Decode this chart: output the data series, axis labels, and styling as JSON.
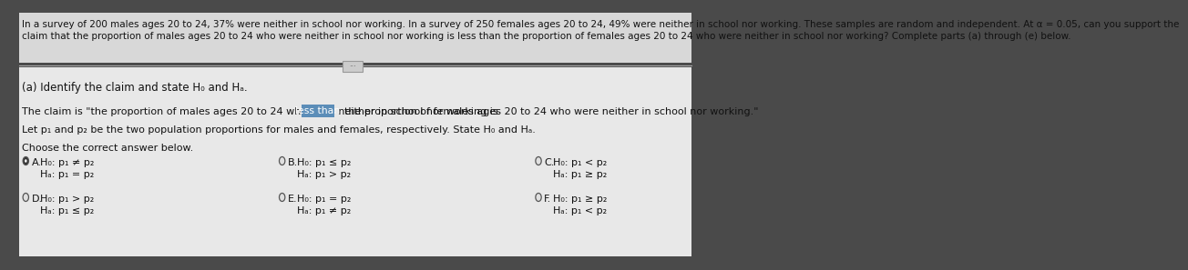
{
  "header_text_line1": "In a survey of 200 males ages 20 to 24, 37% were neither in school nor working. In a survey of 250 females ages 20 to 24, 49% were neither in school nor working. These samples are random and independent. At α = 0.05, can you support the",
  "header_text_line2": "claim that the proportion of males ages 20 to 24 who were neither in school nor working is less than the proportion of females ages 20 to 24 who were neither in school nor working? Complete parts (a) through (e) below.",
  "part_a_label": "(a) Identify the claim and state H₀ and Hₐ.",
  "claim_prefix": "The claim is \"the proportion of males ages 20 to 24 who were neither in school nor working is",
  "claim_highlight": "less than",
  "claim_suffix": "  the proportion of females ages 20 to 24 who were neither in school nor working.\"",
  "let_line": "Let p₁ and p₂ be the two population proportions for males and females, respectively. State H₀ and Hₐ.",
  "choose_line": "Choose the correct answer below.",
  "options": [
    {
      "id": "A",
      "h0": "H₀: p₁ ≠ p₂",
      "ha": "Hₐ: p₁ = p₂",
      "selected": true,
      "row": 0,
      "col": 0
    },
    {
      "id": "B",
      "h0": "H₀: p₁ ≤ p₂",
      "ha": "Hₐ: p₁ > p₂",
      "selected": false,
      "row": 0,
      "col": 1
    },
    {
      "id": "C",
      "h0": "H₀: p₁ < p₂",
      "ha": "Hₐ: p₁ ≥ p₂",
      "selected": false,
      "row": 0,
      "col": 2
    },
    {
      "id": "D",
      "h0": "H₀: p₁ > p₂",
      "ha": "Hₐ: p₁ ≤ p₂",
      "selected": false,
      "row": 1,
      "col": 0
    },
    {
      "id": "E",
      "h0": "H₀: p₁ = p₂",
      "ha": "Hₐ: p₁ ≠ p₂",
      "selected": false,
      "row": 1,
      "col": 1
    },
    {
      "id": "F",
      "h0": "H₀: p₁ ≥ p₂",
      "ha": "Hₐ: p₁ < p₂",
      "selected": false,
      "row": 1,
      "col": 2
    }
  ],
  "outer_bg": "#4a4a4a",
  "header_bg": "#d8d8d8",
  "content_bg": "#e8e8e8",
  "separator_color": "#aaaaaa",
  "text_color": "#1a1a1a",
  "highlight_bg": "#5b8db8",
  "highlight_text": "#ffffff",
  "radio_fill": "#333333",
  "radio_edge": "#555555",
  "radio_empty_fill": "#e0e0e0",
  "scroll_btn_bg": "#cccccc",
  "scroll_btn_edge": "#999999"
}
